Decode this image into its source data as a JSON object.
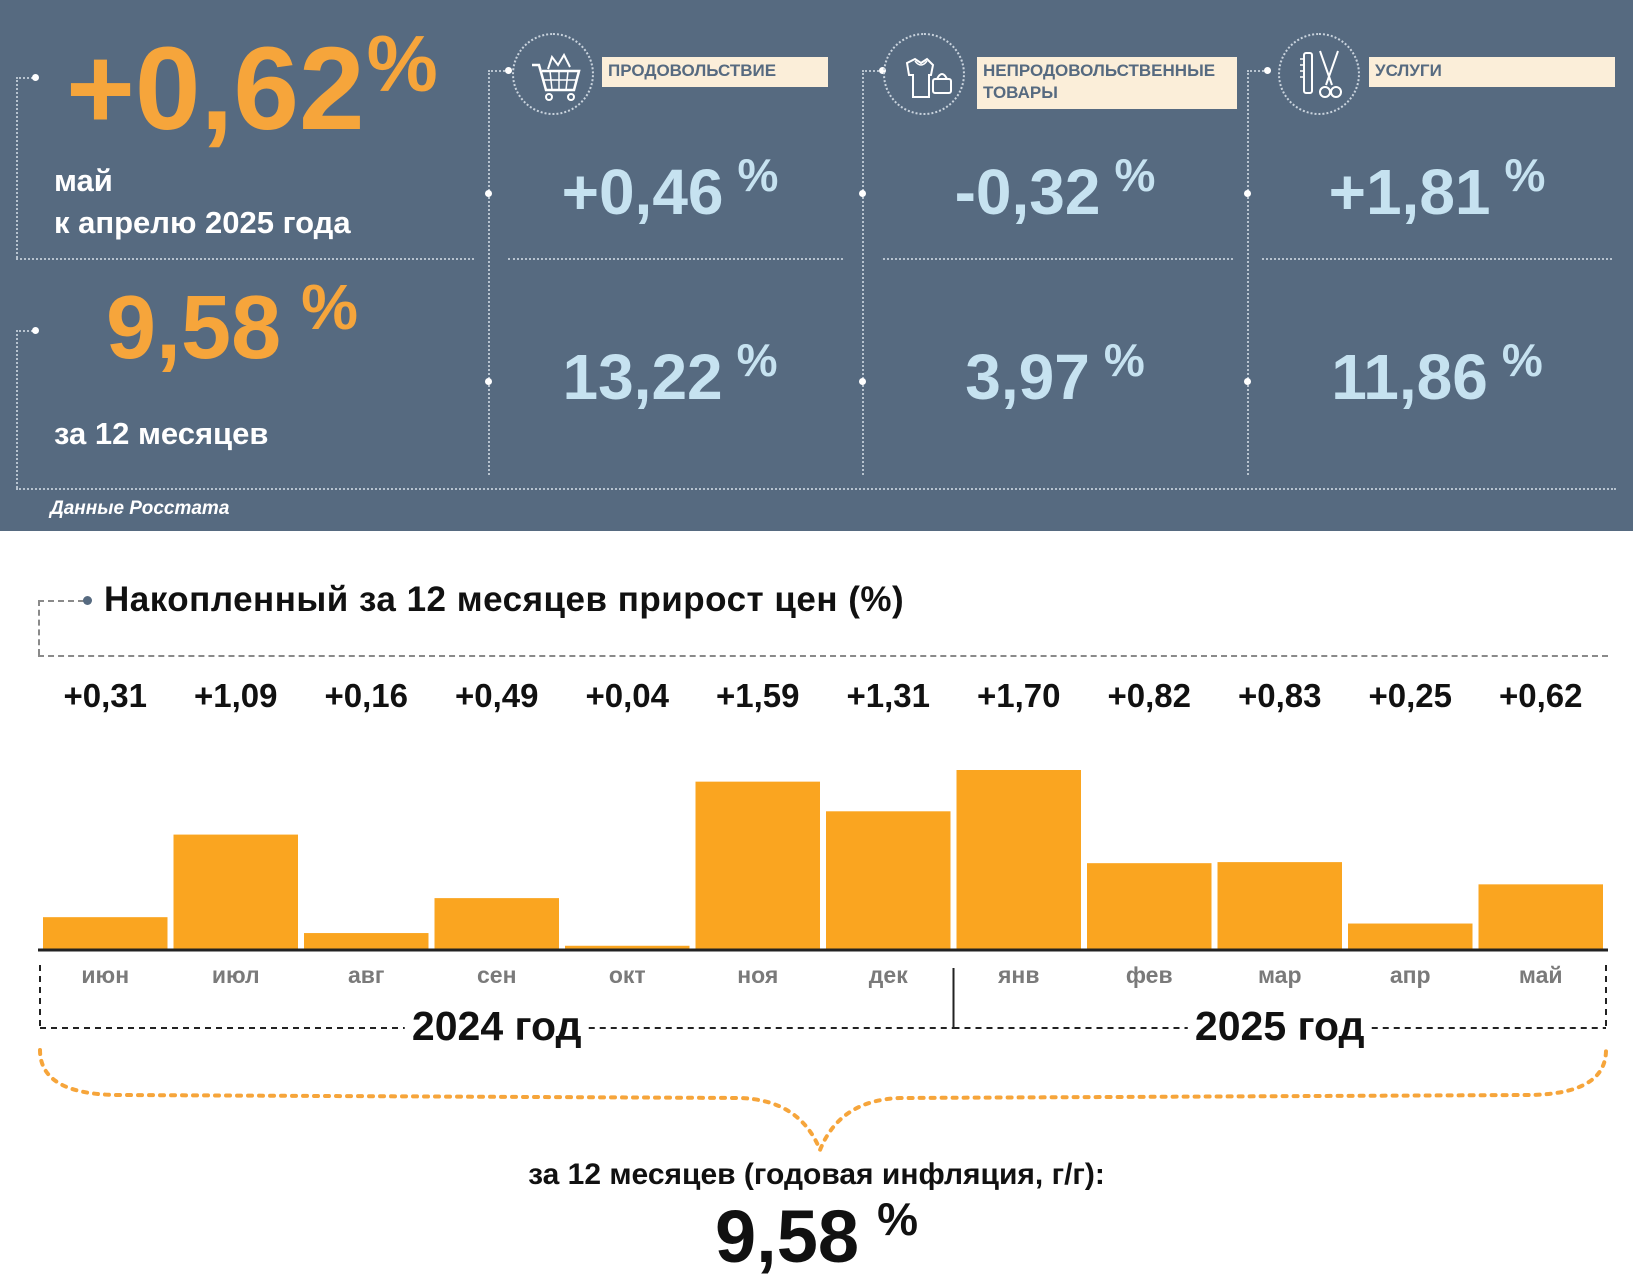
{
  "header": {
    "monthly_value": "+0,62",
    "monthly_unit": "%",
    "monthly_caption_line1": "май",
    "monthly_caption_line2": "к апрелю 2025 года",
    "annual_value": "9,58",
    "annual_unit": "%",
    "annual_caption": "за 12 месяцев",
    "source": "Данные Росстата"
  },
  "categories": [
    {
      "label_line1": "ПРОДОВОЛЬСТВИЕ",
      "label_line2": "",
      "icon": "shopping-cart-icon",
      "monthly": "+0,46",
      "annual": "13,22",
      "unit": "%"
    },
    {
      "label_line1": "НЕПРОДОВОЛЬСТВЕННЫЕ",
      "label_line2": "ТОВАРЫ",
      "icon": "clothing-bag-icon",
      "monthly": "-0,32",
      "annual": "3,97",
      "unit": "%"
    },
    {
      "label_line1": "УСЛУГИ",
      "label_line2": "",
      "icon": "comb-scissors-icon",
      "monthly": "+1,81",
      "annual": "11,86",
      "unit": "%"
    }
  ],
  "colors": {
    "panel": "#566a80",
    "orange": "#f6a53b",
    "light_blue": "#c6e2f0",
    "label_bg": "#fbeed9",
    "bar": "#faa520"
  },
  "chart_data": {
    "type": "bar",
    "title": "Накопленный за 12 месяцев прирост цен (%)",
    "categories": [
      "июн",
      "июл",
      "авг",
      "сен",
      "окт",
      "ноя",
      "дек",
      "янв",
      "фев",
      "мар",
      "апр",
      "май"
    ],
    "values": [
      0.31,
      1.09,
      0.16,
      0.49,
      0.04,
      1.59,
      1.31,
      1.7,
      0.82,
      0.83,
      0.25,
      0.62
    ],
    "value_labels": [
      "+0,31",
      "+1,09",
      "+0,16",
      "+0,49",
      "+0,04",
      "+1,59",
      "+1,31",
      "+1,70",
      "+0,82",
      "+0,83",
      "+0,25",
      "+0,62"
    ],
    "year_groups": [
      {
        "label": "2024 год",
        "months": 7
      },
      {
        "label": "2025 год",
        "months": 5
      }
    ],
    "total_caption": "за 12 месяцев (годовая инфляция, г/г):",
    "total_value": "9,58",
    "total_unit": "%"
  }
}
